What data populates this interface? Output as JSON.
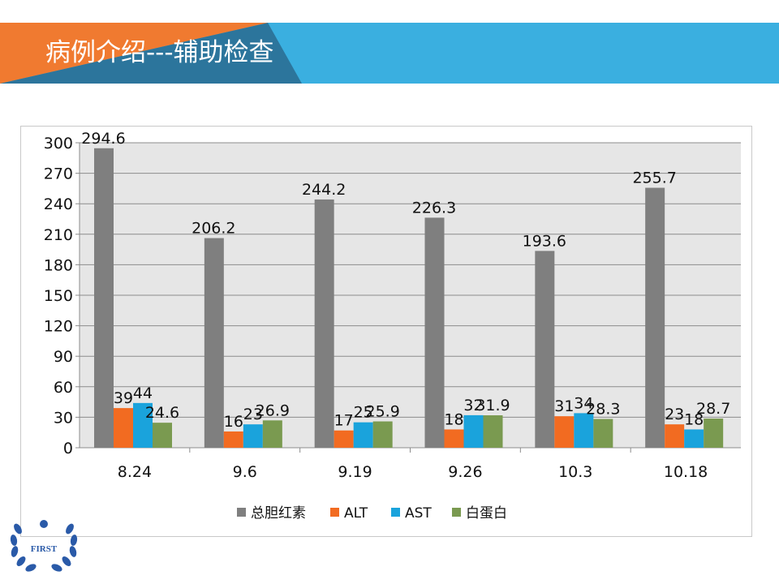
{
  "slide": {
    "title": "病例介绍---辅助检查"
  },
  "logo": {
    "text": "FIRST"
  },
  "colors": {
    "banner_blue": "#3aafe0",
    "banner_orange": "#f07a30",
    "banner_navy": "#2a6b8f"
  },
  "chart_data": {
    "type": "bar",
    "categories": [
      "8.24",
      "9.6",
      "9.19",
      "9.26",
      "10.3",
      "10.18"
    ],
    "series": [
      {
        "name": "总胆红素",
        "color": "#7f7f7f",
        "values": [
          294.6,
          206.2,
          244.2,
          226.3,
          193.6,
          255.7
        ]
      },
      {
        "name": "ALT",
        "color": "#f26b21",
        "values": [
          39,
          16,
          17,
          18,
          31,
          23
        ]
      },
      {
        "name": "AST",
        "color": "#1aa3dc",
        "values": [
          44,
          23,
          25,
          32,
          34,
          18
        ]
      },
      {
        "name": "白蛋白",
        "color": "#7a9a50",
        "values": [
          24.6,
          26.9,
          25.9,
          31.9,
          28.3,
          28.7
        ]
      }
    ],
    "data_labels": [
      [
        "294.6",
        "206.2",
        "244.2",
        "226.3",
        "193.6",
        "255.7"
      ],
      [
        "39",
        "16",
        "17",
        "18",
        "31",
        "23"
      ],
      [
        "44",
        "23",
        "25",
        "32",
        "34",
        "18"
      ],
      [
        "24.6",
        "26.9",
        "25.9",
        "31.9",
        "28.3",
        "28.7"
      ]
    ],
    "y_ticks": [
      "0",
      "30",
      "60",
      "90",
      "120",
      "150",
      "180",
      "210",
      "240",
      "270",
      "300"
    ],
    "ylim": [
      0,
      300
    ],
    "grid": true,
    "legend_position": "bottom"
  }
}
